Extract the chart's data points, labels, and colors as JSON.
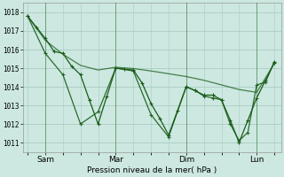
{
  "background_color": "#cce8e0",
  "grid_color": "#aaccc4",
  "line_color": "#1a5c1a",
  "xlabel": "Pression niveau de la mer( hPa )",
  "ylim": [
    1010.5,
    1018.5
  ],
  "yticks": [
    1011,
    1012,
    1013,
    1014,
    1015,
    1016,
    1017,
    1018
  ],
  "day_labels": [
    "Sam",
    "Mar",
    "Dim",
    "Lun"
  ],
  "day_positions": [
    8,
    40,
    72,
    104
  ],
  "day_vlines": [
    8,
    40,
    72,
    104
  ],
  "line1_x": [
    0,
    4,
    8,
    12,
    16,
    20,
    24,
    28,
    32,
    36,
    40,
    44,
    48,
    52,
    56,
    60,
    64,
    68,
    72,
    76,
    80,
    84,
    88,
    92,
    96,
    100,
    104,
    108,
    112
  ],
  "line1_y": [
    1017.8,
    1017.2,
    1016.6,
    1015.9,
    1015.8,
    1015.1,
    1014.65,
    1013.3,
    1012.0,
    1013.5,
    1015.0,
    1014.95,
    1014.9,
    1014.2,
    1013.1,
    1012.3,
    1011.4,
    1012.7,
    1014.0,
    1013.8,
    1013.55,
    1013.55,
    1013.3,
    1012.2,
    1011.0,
    1012.2,
    1013.4,
    1014.35,
    1015.3
  ],
  "line2_x": [
    0,
    8,
    16,
    24,
    32,
    40,
    48,
    56,
    64,
    72,
    80,
    88,
    96,
    104,
    112
  ],
  "line2_y": [
    1017.8,
    1016.5,
    1015.75,
    1015.15,
    1014.9,
    1015.05,
    1014.98,
    1014.85,
    1014.7,
    1014.55,
    1014.35,
    1014.1,
    1013.85,
    1013.7,
    1015.25
  ],
  "line3_x": [
    0,
    8,
    16,
    24,
    32,
    40,
    48,
    56,
    64,
    72,
    76,
    80,
    84,
    88,
    92,
    96,
    100,
    104,
    108,
    112
  ],
  "line3_y": [
    1017.8,
    1015.8,
    1014.65,
    1012.0,
    1012.65,
    1015.0,
    1014.85,
    1012.5,
    1011.3,
    1014.0,
    1013.8,
    1013.5,
    1013.4,
    1013.3,
    1012.0,
    1011.1,
    1011.55,
    1014.1,
    1014.25,
    1015.35
  ],
  "xlim": [
    -2,
    115
  ]
}
